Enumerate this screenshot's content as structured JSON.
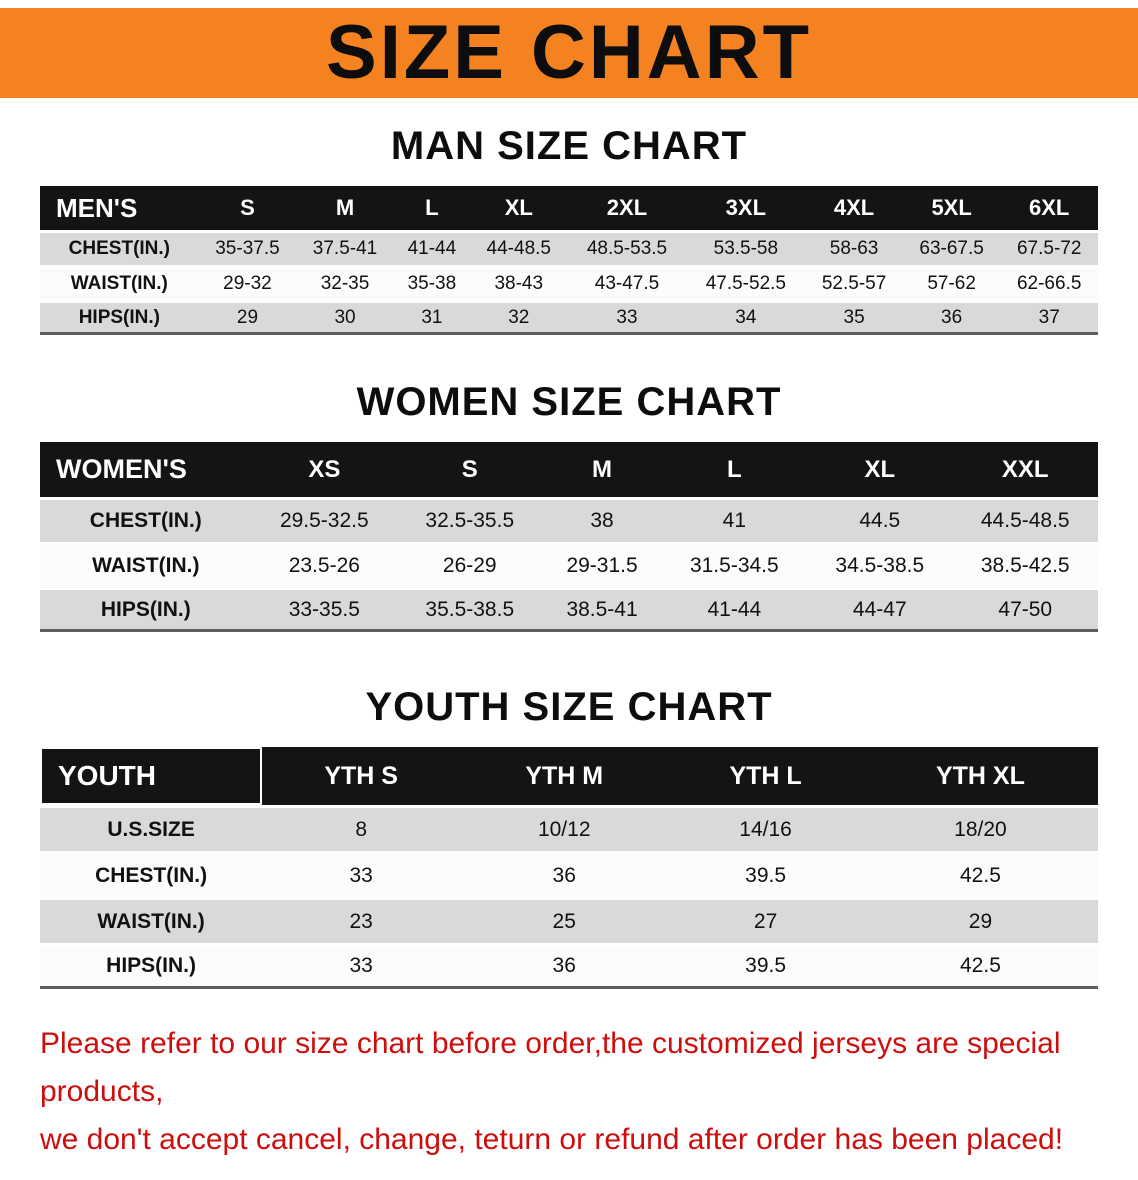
{
  "banner": {
    "title": "SIZE CHART"
  },
  "sections": [
    {
      "id": "men",
      "heading": "MAN SIZE CHART",
      "table": {
        "header": [
          "MEN'S",
          "S",
          "M",
          "L",
          "XL",
          "2XL",
          "3XL",
          "4XL",
          "5XL",
          "6XL"
        ],
        "rows": [
          [
            "CHEST(IN.)",
            "35-37.5",
            "37.5-41",
            "41-44",
            "44-48.5",
            "48.5-53.5",
            "53.5-58",
            "58-63",
            "63-67.5",
            "67.5-72"
          ],
          [
            "WAIST(IN.)",
            "29-32",
            "32-35",
            "35-38",
            "38-43",
            "43-47.5",
            "47.5-52.5",
            "52.5-57",
            "57-62",
            "62-66.5"
          ],
          [
            "HIPS(IN.)",
            "29",
            "30",
            "31",
            "32",
            "33",
            "34",
            "35",
            "36",
            "37"
          ]
        ]
      }
    },
    {
      "id": "women",
      "heading": "WOMEN SIZE CHART",
      "table": {
        "header": [
          "WOMEN'S",
          "XS",
          "S",
          "M",
          "L",
          "XL",
          "XXL"
        ],
        "rows": [
          [
            "CHEST(IN.)",
            "29.5-32.5",
            "32.5-35.5",
            "38",
            "41",
            "44.5",
            "44.5-48.5"
          ],
          [
            "WAIST(IN.)",
            "23.5-26",
            "26-29",
            "29-31.5",
            "31.5-34.5",
            "34.5-38.5",
            "38.5-42.5"
          ],
          [
            "HIPS(IN.)",
            "33-35.5",
            "35.5-38.5",
            "38.5-41",
            "41-44",
            "44-47",
            "47-50"
          ]
        ]
      }
    },
    {
      "id": "youth",
      "heading": "YOUTH SIZE CHART",
      "table": {
        "header": [
          "YOUTH",
          "YTH S",
          "YTH M",
          "YTH L",
          "YTH XL"
        ],
        "rows": [
          [
            "U.S.SIZE",
            "8",
            "10/12",
            "14/16",
            "18/20"
          ],
          [
            "CHEST(IN.)",
            "33",
            "36",
            "39.5",
            "42.5"
          ],
          [
            "WAIST(IN.)",
            "23",
            "25",
            "27",
            "29"
          ],
          [
            "HIPS(IN.)",
            "33",
            "36",
            "39.5",
            "42.5"
          ]
        ]
      }
    }
  ],
  "footer": {
    "line1": "Please refer to our size chart before order,the customized jerseys are special products,",
    "line2": "we don't accept cancel, change, teturn or refund after order has been placed!"
  },
  "colors": {
    "banner_orange": "#F58220",
    "header_black": "#141414",
    "row_gray": "#d9d9d9",
    "row_light": "#fcfcfc",
    "footer_red": "#CE0D0D",
    "table_bottom": "#5e5e5e"
  }
}
